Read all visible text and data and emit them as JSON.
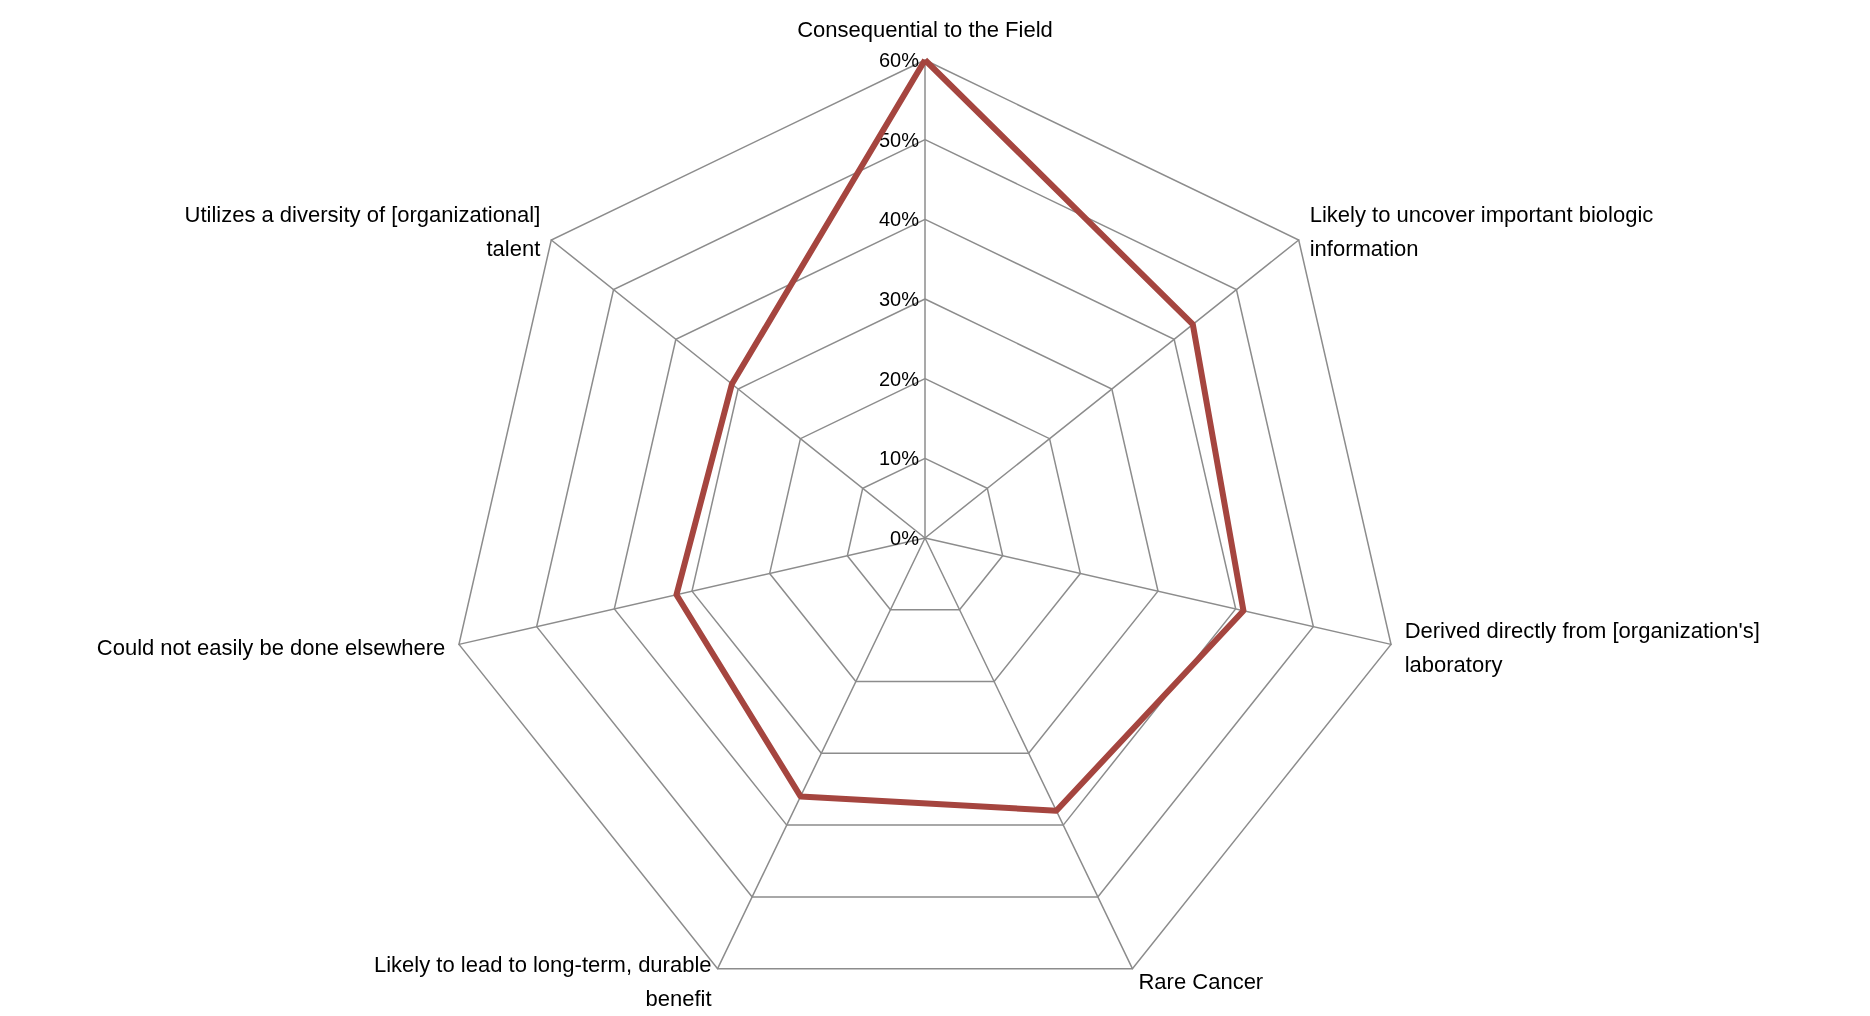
{
  "chart_data": {
    "type": "radar",
    "categories": [
      "Consequential to the Field",
      "Likely to uncover important biologic information",
      "Derived directly from [organization's] laboratory",
      "Rare Cancer",
      "Likely to lead to long-term, durable benefit",
      "Could not easily be done elsewhere",
      "Utilizes a diversity of [organizational] talent"
    ],
    "series": [
      {
        "color": "#a5453f",
        "values": [
          60,
          43,
          41,
          38,
          36,
          32,
          31
        ]
      }
    ],
    "ylim": [
      0,
      60
    ],
    "yticks": [
      {
        "value": 0,
        "label": "0%"
      },
      {
        "value": 10,
        "label": "10%"
      },
      {
        "value": 20,
        "label": "20%"
      },
      {
        "value": 30,
        "label": "30%"
      },
      {
        "value": 40,
        "label": "40%"
      },
      {
        "value": 50,
        "label": "50%"
      },
      {
        "value": 60,
        "label": "60%"
      }
    ],
    "grid": true,
    "marker": "none",
    "line_style": "solid"
  }
}
